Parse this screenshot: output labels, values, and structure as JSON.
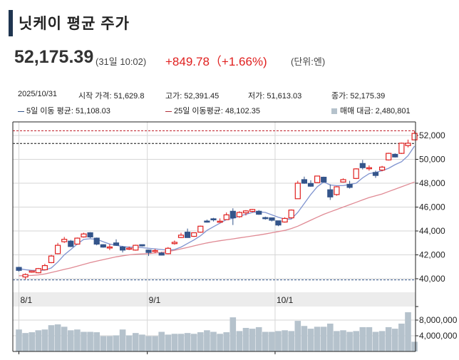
{
  "header": {
    "title": "닛케이 평균 주가",
    "price": "52,175.39",
    "time": "(31일 10:02)",
    "change": "+849.78（+1.66%)",
    "unit": "(단위:엔)"
  },
  "info": {
    "date": "2025/10/31",
    "open": "시작 가격: 51,629.8",
    "high": "고가: 52,391.45",
    "low": "저가: 51,613.03",
    "close": "종가: 52,175.39"
  },
  "legend": {
    "ma5": "5일 이동 평균: 51,108.03",
    "ma25": "25일 이동평균: 48,102.35",
    "volume": "매매 대금: 2,480,801"
  },
  "colors": {
    "up": "#e0201f",
    "down": "#34558b",
    "ma5": "#7f93cf",
    "ma25": "#e08a94",
    "volume": "#b5c2cc"
  },
  "chart_data": {
    "type": "candlestick",
    "title": "닛케이 평균 주가",
    "ylim": [
      38300,
      53130
    ],
    "yticks": [
      {
        "v": 40000,
        "label": "40,000"
      },
      {
        "v": 42000,
        "label": "42,000"
      },
      {
        "v": 44000,
        "label": "44,000"
      },
      {
        "v": 46000,
        "label": "46,000"
      },
      {
        "v": 48000,
        "label": "48,000"
      },
      {
        "v": 50000,
        "label": "50,000"
      },
      {
        "v": 52000,
        "label": "52,000"
      }
    ],
    "xlabels": [
      {
        "i": 0,
        "label": "8/1"
      },
      {
        "i": 19.8,
        "label": "9/1"
      },
      {
        "i": 39.5,
        "label": "10/1"
      }
    ],
    "reference_lines": {
      "high": 52391.45,
      "prev_close": 51325.61,
      "period_low": 39900
    },
    "ohlc": [
      [
        40950,
        41000,
        40600,
        40700
      ],
      [
        40150,
        40450,
        39950,
        40350
      ],
      [
        40550,
        40700,
        40500,
        40650
      ],
      [
        40500,
        40900,
        40450,
        40850
      ],
      [
        40750,
        41250,
        40700,
        41100
      ],
      [
        41350,
        42000,
        41300,
        41900
      ],
      [
        42100,
        43000,
        42050,
        42800
      ],
      [
        43100,
        43500,
        43000,
        43300
      ],
      [
        43150,
        43250,
        42650,
        42700
      ],
      [
        42900,
        43450,
        42850,
        43400
      ],
      [
        43500,
        43850,
        43450,
        43750
      ],
      [
        43850,
        43900,
        43400,
        43500
      ],
      [
        43400,
        43450,
        42800,
        42900
      ],
      [
        42850,
        42900,
        42600,
        42650
      ],
      [
        42620,
        42900,
        42400,
        42660
      ],
      [
        43000,
        43300,
        42750,
        42800
      ],
      [
        42650,
        42750,
        42200,
        42400
      ],
      [
        42500,
        42700,
        42400,
        42560
      ],
      [
        42400,
        42850,
        42350,
        42800
      ],
      [
        42850,
        42850,
        42700,
        42750
      ],
      [
        42400,
        42450,
        41900,
        42200
      ],
      [
        42320,
        42500,
        42150,
        42360
      ],
      [
        42150,
        42250,
        41950,
        41980
      ],
      [
        42100,
        42650,
        42050,
        42550
      ],
      [
        42940,
        43200,
        42850,
        43050
      ],
      [
        43450,
        43850,
        43400,
        43650
      ],
      [
        43900,
        44200,
        43450,
        43450
      ],
      [
        43550,
        43850,
        43500,
        43850
      ],
      [
        43900,
        44450,
        43850,
        44400
      ],
      [
        44830,
        44950,
        44700,
        44800
      ],
      [
        45020,
        45100,
        44800,
        44980
      ],
      [
        44760,
        45050,
        44700,
        44820
      ],
      [
        44950,
        45550,
        44950,
        45350
      ],
      [
        45650,
        45900,
        44500,
        45100
      ],
      [
        45200,
        45650,
        45100,
        45550
      ],
      [
        45520,
        45750,
        45300,
        45680
      ],
      [
        45640,
        45850,
        45550,
        45800
      ],
      [
        45650,
        45750,
        45350,
        45400
      ],
      [
        45120,
        45200,
        44950,
        45080
      ],
      [
        45100,
        45100,
        44800,
        44900
      ],
      [
        44850,
        44850,
        44400,
        44500
      ],
      [
        44750,
        45150,
        44700,
        45050
      ],
      [
        45100,
        45800,
        45050,
        45750
      ],
      [
        46700,
        48200,
        46700,
        48000
      ],
      [
        48300,
        48550,
        47950,
        48000
      ],
      [
        47980,
        48250,
        47700,
        47750
      ],
      [
        48050,
        48600,
        48000,
        48600
      ],
      [
        48500,
        48550,
        48050,
        48100
      ],
      [
        47450,
        47900,
        46600,
        46850
      ],
      [
        47050,
        47750,
        46950,
        47700
      ],
      [
        48100,
        48400,
        48050,
        48300
      ],
      [
        47900,
        48200,
        47550,
        47650
      ],
      [
        48400,
        49250,
        48350,
        49200
      ],
      [
        49650,
        49950,
        49150,
        49300
      ],
      [
        49250,
        49500,
        49050,
        49300
      ],
      [
        48900,
        49050,
        48450,
        48650
      ],
      [
        49100,
        49450,
        49000,
        49350
      ],
      [
        49950,
        50550,
        49900,
        50500
      ],
      [
        50420,
        50500,
        50150,
        50200
      ],
      [
        50500,
        51400,
        50450,
        51350
      ],
      [
        51150,
        51650,
        51000,
        51350
      ],
      [
        51629.8,
        52391.45,
        51613.03,
        52175.39
      ]
    ],
    "ma5": [
      40850,
      40760,
      40700,
      40700,
      40720,
      40900,
      41400,
      42000,
      42450,
      42900,
      43300,
      43350,
      43300,
      43100,
      42900,
      42800,
      42700,
      42650,
      42650,
      42600,
      42550,
      42500,
      42450,
      42380,
      42450,
      42650,
      42950,
      43250,
      43600,
      44050,
      44350,
      44650,
      44950,
      45050,
      45250,
      45400,
      45550,
      45600,
      45550,
      45350,
      45150,
      45000,
      45000,
      45550,
      46300,
      47050,
      47700,
      48100,
      47850,
      47800,
      47800,
      47900,
      48000,
      48450,
      48800,
      48900,
      49050,
      49250,
      49550,
      49800,
      50300,
      51108.03
    ],
    "ma25": [
      40250,
      40260,
      40280,
      40320,
      40400,
      40520,
      40650,
      40780,
      40900,
      41050,
      41200,
      41350,
      41480,
      41600,
      41720,
      41830,
      41920,
      42000,
      42050,
      42080,
      42100,
      42150,
      42200,
      42280,
      42380,
      42500,
      42620,
      42750,
      42880,
      43000,
      43100,
      43180,
      43260,
      43340,
      43420,
      43500,
      43580,
      43660,
      43750,
      43850,
      43950,
      44050,
      44200,
      44400,
      44650,
      44900,
      45150,
      45400,
      45600,
      45800,
      46000,
      46200,
      46400,
      46600,
      46800,
      46950,
      47100,
      47300,
      47500,
      47700,
      47900,
      48102.35
    ],
    "volume_ticks": [
      {
        "v": 4000000,
        "label": "4,000,000"
      },
      {
        "v": 8000000,
        "label": "8,000,000"
      }
    ],
    "volume": [
      5600000,
      4700000,
      4900000,
      5400000,
      5600000,
      6700000,
      6900000,
      6300000,
      5400000,
      5600000,
      5000000,
      5000000,
      4900000,
      3900000,
      3900000,
      4100000,
      5600000,
      4100000,
      4700000,
      4300000,
      3900000,
      3900000,
      5000000,
      4300000,
      4500000,
      4500000,
      4700000,
      4500000,
      4900000,
      5400000,
      5000000,
      4500000,
      4900000,
      8700000,
      5200000,
      6000000,
      5800000,
      6200000,
      5000000,
      5000000,
      5200000,
      5400000,
      5200000,
      7800000,
      6500000,
      5800000,
      6300000,
      6300000,
      7100000,
      5200000,
      5400000,
      5000000,
      5200000,
      6200000,
      6200000,
      5000000,
      5200000,
      6200000,
      5800000,
      7100000,
      10000000,
      2480801
    ]
  }
}
